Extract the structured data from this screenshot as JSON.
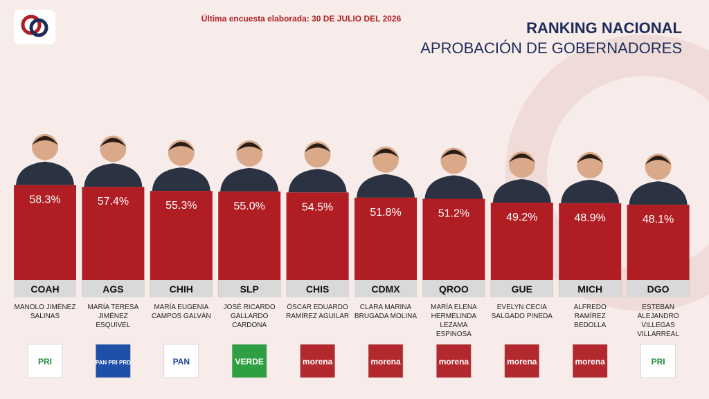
{
  "chart_data": {
    "type": "bar",
    "subtitle": "Última encuesta elaborada: 30 DE JULIO DEL 2026",
    "title": "RANKING NACIONAL",
    "title2": "APROBACIÓN DE GOBERNADORES",
    "categories": [
      "COAH",
      "AGS",
      "CHIH",
      "SLP",
      "CHIS",
      "CDMX",
      "QROO",
      "GUE",
      "MICH",
      "DGO"
    ],
    "values": [
      58.3,
      57.4,
      55.3,
      55.0,
      54.5,
      51.8,
      51.2,
      49.2,
      48.9,
      48.1
    ],
    "value_labels": [
      "58.3%",
      "57.4%",
      "55.3%",
      "55.0%",
      "54.5%",
      "51.8%",
      "51.2%",
      "49.2%",
      "48.9%",
      "48.1%"
    ],
    "names": [
      "MANOLO JIMÉNEZ SALINAS",
      "MARÍA TERESA JIMÉNEZ ESQUIVEL",
      "MARÍA EUGENIA CAMPOS GALVÁN",
      "JOSÉ RICARDO GALLARDO CARDONA",
      "ÓSCAR EDUARDO RAMÍREZ AGUILAR",
      "CLARA MARINA BRUGADA MOLINA",
      "MARÍA ELENA HERMELINDA LEZAMA ESPINOSA",
      "EVELYN CECIA SALGADO PINEDA",
      "ALFREDO RAMÍREZ BEDOLLA",
      "ESTEBAN ALEJANDRO VILLEGAS VILLARREAL"
    ],
    "parties": [
      {
        "label": "PRI",
        "bg": "#ffffff",
        "fg": "#1d8b3b"
      },
      {
        "label": "PAN PRI PRD",
        "bg": "#1f4fa8",
        "fg": "#ffffff"
      },
      {
        "label": "PAN",
        "bg": "#ffffff",
        "fg": "#1c3f94"
      },
      {
        "label": "VERDE",
        "bg": "#2ea043",
        "fg": "#ffffff"
      },
      {
        "label": "morena",
        "bg": "#b3282d",
        "fg": "#ffffff"
      },
      {
        "label": "morena",
        "bg": "#b3282d",
        "fg": "#ffffff"
      },
      {
        "label": "morena",
        "bg": "#b3282d",
        "fg": "#ffffff"
      },
      {
        "label": "morena",
        "bg": "#b3282d",
        "fg": "#ffffff"
      },
      {
        "label": "morena",
        "bg": "#b3282d",
        "fg": "#ffffff"
      },
      {
        "label": "PRI",
        "bg": "#ffffff",
        "fg": "#1d8b3b"
      }
    ],
    "color": "#b01e24",
    "ylim": [
      0,
      60
    ]
  }
}
